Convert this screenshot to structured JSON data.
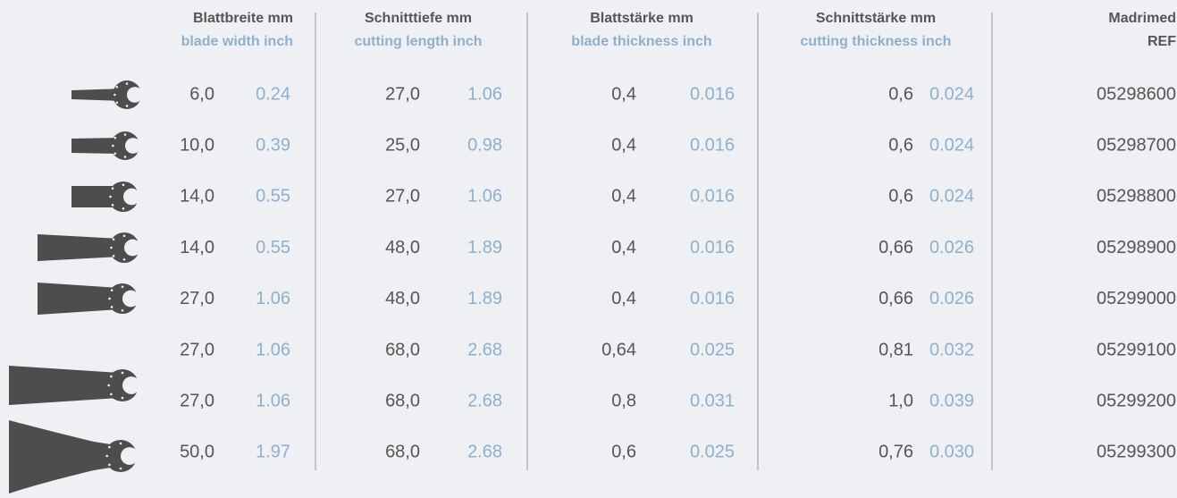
{
  "header": {
    "columns": [
      {
        "line1": "Blattbreite mm",
        "line2": "blade width inch"
      },
      {
        "line1": "Schnitttiefe mm",
        "line2": "cutting length inch"
      },
      {
        "line1": "Blattstärke mm",
        "line2": "blade thickness inch"
      },
      {
        "line1": "Schnittstärke mm",
        "line2": "cutting thickness inch"
      },
      {
        "line1": "Madrimed",
        "line2": "REF"
      }
    ]
  },
  "table": {
    "rows": [
      [
        "6,0",
        "0.24",
        "27,0",
        "1.06",
        "0,4",
        "0.016",
        "0,6",
        "0.024",
        "05298600"
      ],
      [
        "10,0",
        "0.39",
        "25,0",
        "0.98",
        "0,4",
        "0.016",
        "0,6",
        "0.024",
        "05298700"
      ],
      [
        "14,0",
        "0.55",
        "27,0",
        "1.06",
        "0,4",
        "0.016",
        "0,6",
        "0.024",
        "05298800"
      ],
      [
        "14,0",
        "0.55",
        "48,0",
        "1.89",
        "0,4",
        "0.016",
        "0,66",
        "0.026",
        "05298900"
      ],
      [
        "27,0",
        "1.06",
        "48,0",
        "1.89",
        "0,4",
        "0.016",
        "0,66",
        "0.026",
        "05299000"
      ],
      [
        "27,0",
        "1.06",
        "68,0",
        "2.68",
        "0,64",
        "0.025",
        "0,81",
        "0.032",
        "05299100"
      ],
      [
        "27,0",
        "1.06",
        "68,0",
        "2.68",
        "0,8",
        "0.031",
        "1,0",
        "0.039",
        "05299200"
      ],
      [
        "50,0",
        "1.97",
        "68,0",
        "2.68",
        "0,6",
        "0.025",
        "0,76",
        "0.030",
        "05299300"
      ]
    ]
  }
}
